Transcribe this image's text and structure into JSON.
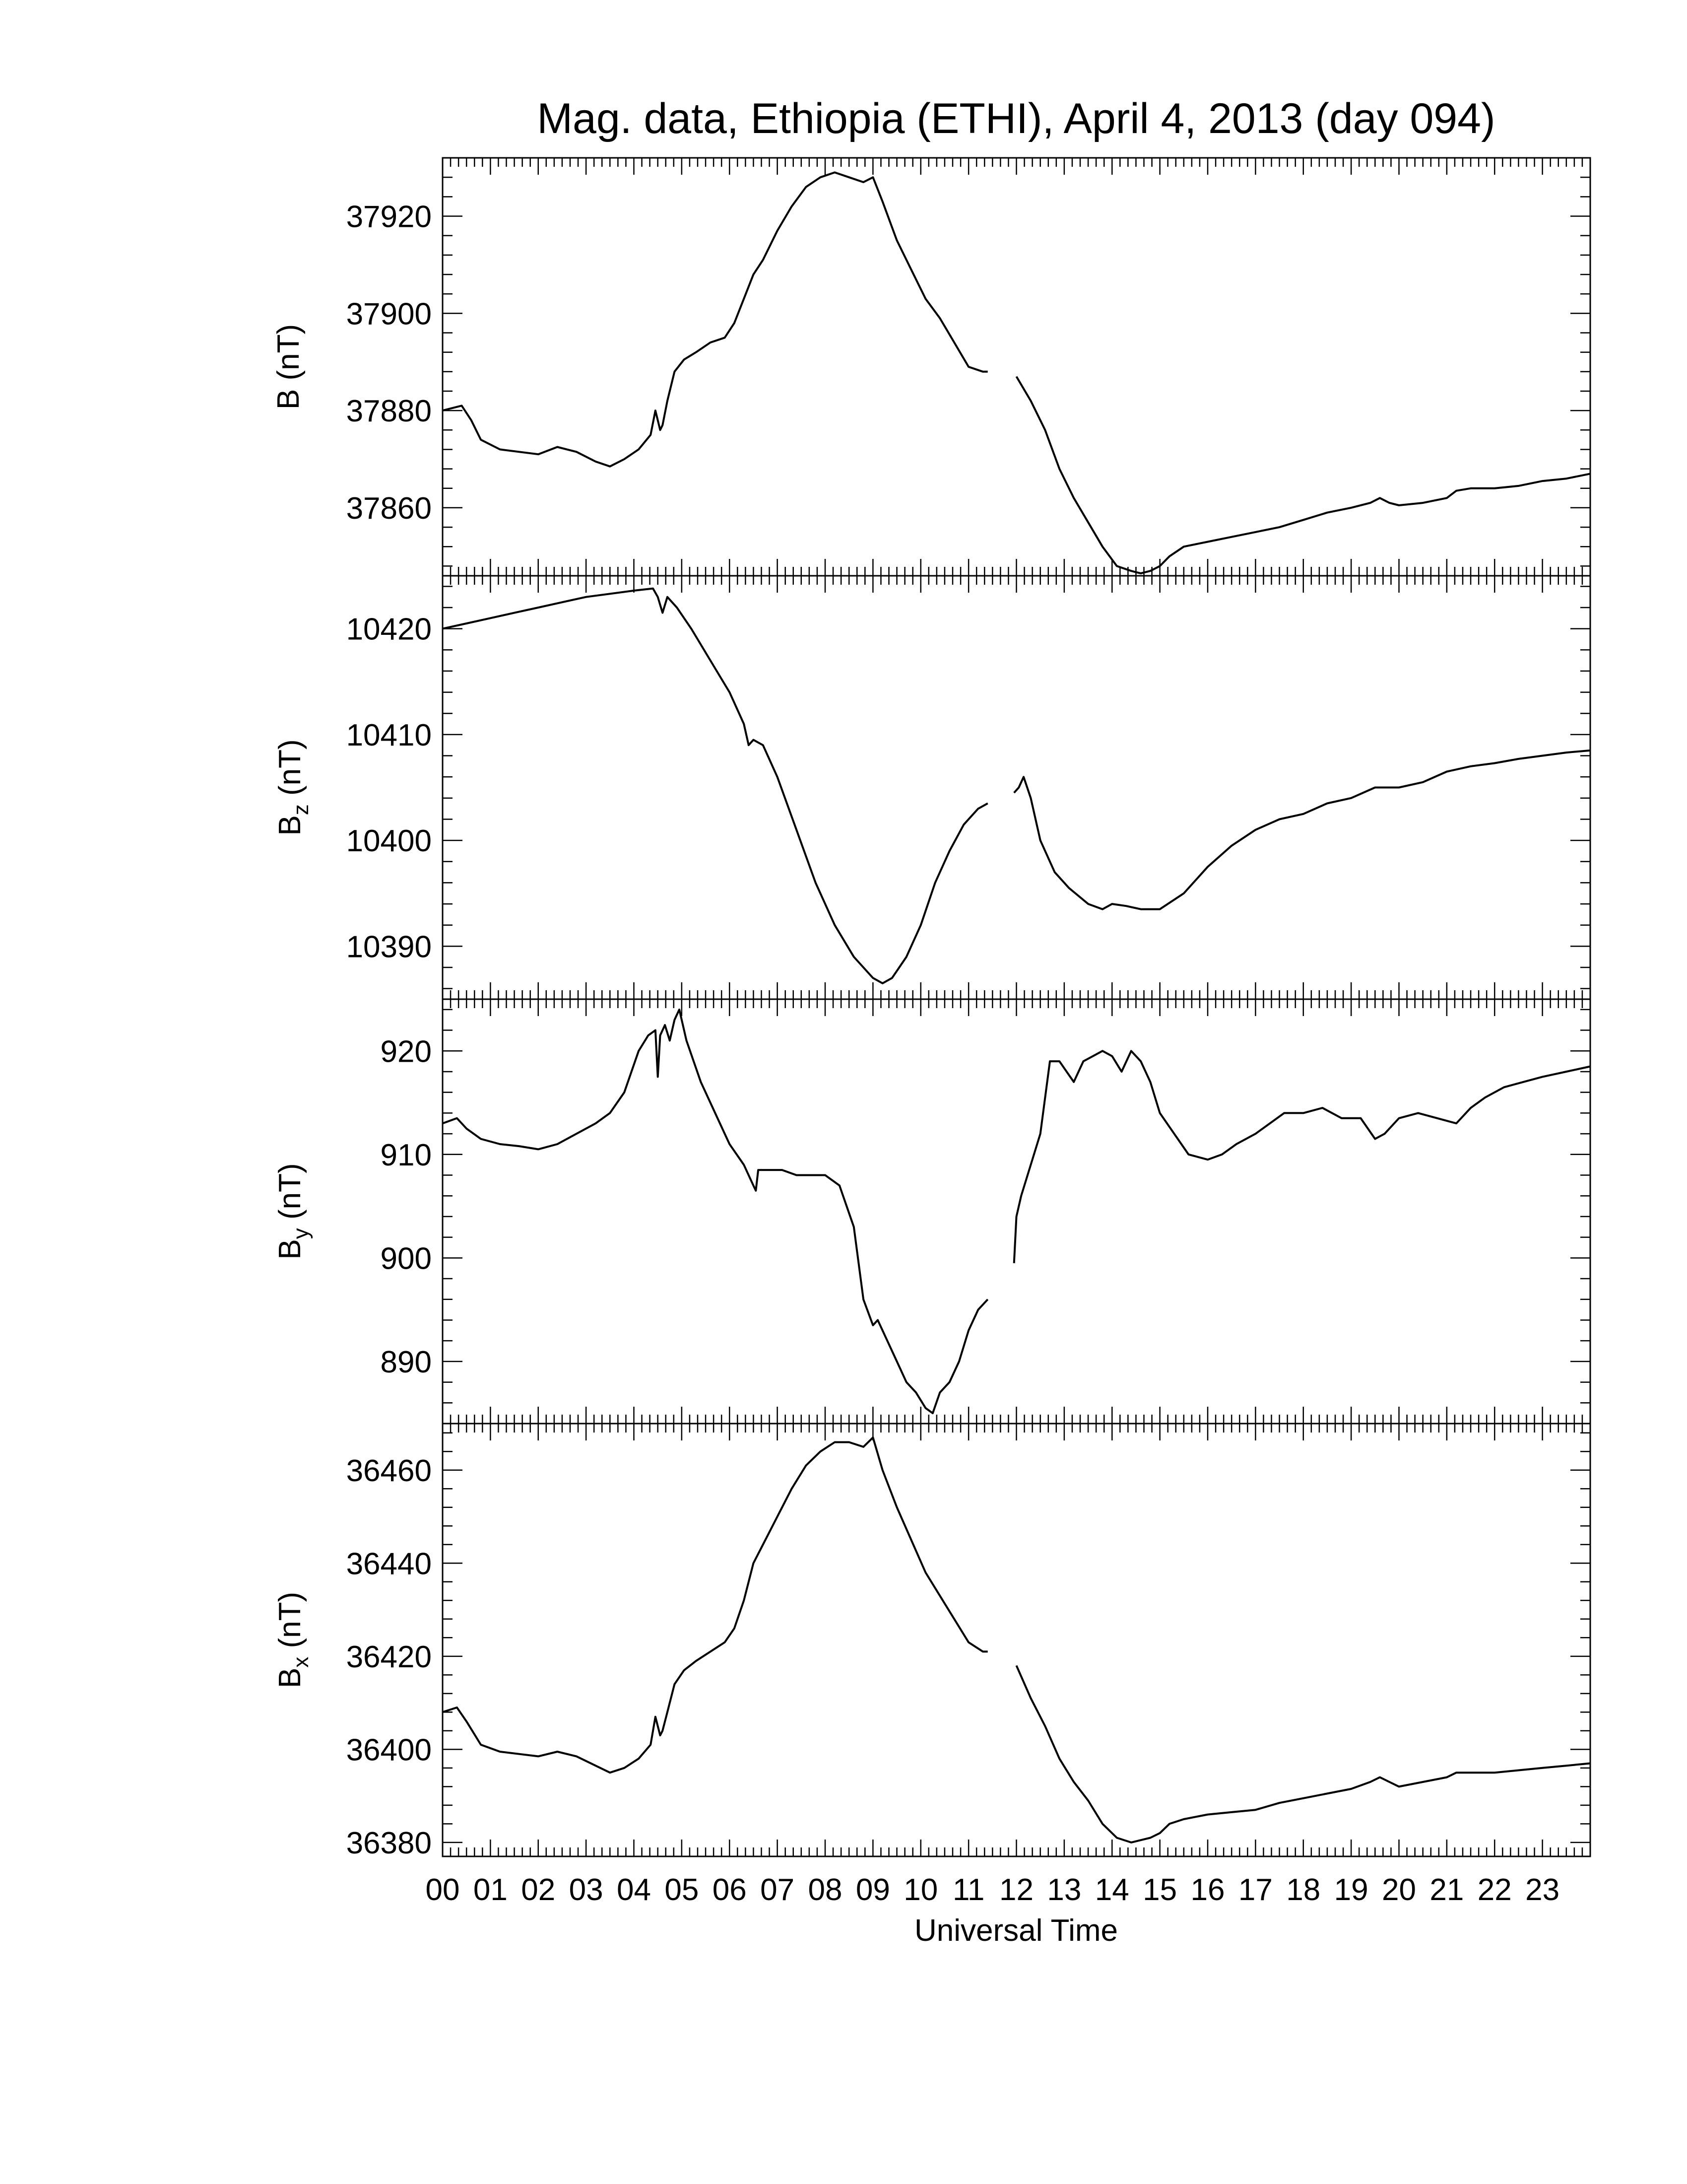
{
  "figure": {
    "title": "Mag. data, Ethiopia (ETHI), April 4, 2013 (day 094)",
    "xlabel": "Universal Time",
    "line_color": "#000000"
  },
  "chart_data": [
    {
      "type": "line",
      "panel": "B",
      "ylabel": "B (nT)",
      "ylabel_base": "B",
      "ylabel_sub": "",
      "ylabel_unit": "(nT)",
      "xlim": [
        0,
        24
      ],
      "ylim": [
        37846,
        37932
      ],
      "yticks": [
        37860,
        37880,
        37900,
        37920
      ],
      "xticks": [
        "00",
        "01",
        "02",
        "03",
        "04",
        "05",
        "06",
        "07",
        "08",
        "09",
        "10",
        "11",
        "12",
        "13",
        "14",
        "15",
        "16",
        "17",
        "18",
        "19",
        "20",
        "21",
        "22",
        "23"
      ],
      "x": [
        0,
        0.4,
        0.6,
        0.8,
        1.2,
        1.6,
        2.0,
        2.4,
        2.8,
        3.2,
        3.5,
        3.8,
        4.1,
        4.35,
        4.45,
        4.55,
        4.6,
        4.7,
        4.85,
        5.05,
        5.3,
        5.6,
        5.9,
        6.1,
        6.3,
        6.5,
        6.7,
        7.0,
        7.3,
        7.6,
        7.9,
        8.2,
        8.5,
        8.8,
        9.0,
        9.2,
        9.5,
        9.8,
        10.1,
        10.4,
        10.7,
        11.0,
        11.3,
        11.4,
        null,
        12.0,
        12.3,
        12.6,
        12.9,
        13.2,
        13.5,
        13.8,
        14.1,
        14.4,
        14.6,
        14.8,
        15.0,
        15.2,
        15.5,
        16.0,
        16.5,
        17.0,
        17.5,
        18.0,
        18.5,
        19.0,
        19.4,
        19.6,
        19.8,
        20.0,
        20.5,
        21.0,
        21.2,
        21.5,
        22.0,
        22.5,
        23.0,
        23.5,
        24.0
      ],
      "y": [
        37880,
        37881,
        37878,
        37874,
        37872,
        37871.5,
        37871,
        37872.5,
        37871.5,
        37869.5,
        37868.5,
        37870,
        37872,
        37875,
        37880,
        37876,
        37877,
        37882,
        37888,
        37890.5,
        37892,
        37894,
        37895,
        37898,
        37903,
        37908,
        37911,
        37917,
        37922,
        37926,
        37928,
        37929,
        37928,
        37927,
        37928,
        37923,
        37915,
        37909,
        37903,
        37899,
        37894,
        37889,
        37888,
        37888,
        null,
        37887,
        37882,
        37876,
        37868,
        37862,
        37857,
        37852,
        37848,
        37847,
        37846.5,
        37847,
        37848,
        37850,
        37852,
        37853,
        37854,
        37855,
        37856,
        37857.5,
        37859,
        37860,
        37861,
        37862,
        37861,
        37860.5,
        37861,
        37862,
        37863.5,
        37864,
        37864,
        37864.5,
        37865.5,
        37866,
        37867
      ]
    },
    {
      "type": "line",
      "panel": "Bz",
      "ylabel": "Bz (nT)",
      "ylabel_base": "B",
      "ylabel_sub": "z",
      "ylabel_unit": "(nT)",
      "xlim": [
        0,
        24
      ],
      "ylim": [
        10385,
        10425
      ],
      "yticks": [
        10390,
        10400,
        10410,
        10420
      ],
      "xticks": [
        "00",
        "01",
        "02",
        "03",
        "04",
        "05",
        "06",
        "07",
        "08",
        "09",
        "10",
        "11",
        "12",
        "13",
        "14",
        "15",
        "16",
        "17",
        "18",
        "19",
        "20",
        "21",
        "22",
        "23"
      ],
      "x": [
        0,
        0.5,
        1.0,
        1.5,
        2.0,
        2.5,
        3.0,
        3.5,
        4.0,
        4.4,
        4.5,
        4.6,
        4.7,
        4.9,
        5.2,
        5.6,
        6.0,
        6.3,
        6.4,
        6.5,
        6.7,
        7.0,
        7.4,
        7.8,
        8.2,
        8.6,
        9.0,
        9.2,
        9.4,
        9.7,
        10.0,
        10.3,
        10.6,
        10.9,
        11.2,
        11.4,
        null,
        11.95,
        12.05,
        12.15,
        12.3,
        12.5,
        12.8,
        13.1,
        13.5,
        13.8,
        14.0,
        14.3,
        14.6,
        15.0,
        15.5,
        16.0,
        16.5,
        17.0,
        17.5,
        18.0,
        18.5,
        19.0,
        19.5,
        20.0,
        20.5,
        21.0,
        21.5,
        22.0,
        22.5,
        23.0,
        23.5,
        24.0
      ],
      "y": [
        10420,
        10420.5,
        10421,
        10421.5,
        10422,
        10422.5,
        10423,
        10423.3,
        10423.6,
        10423.8,
        10423,
        10421.5,
        10423,
        10422,
        10420,
        10417,
        10414,
        10411,
        10409,
        10409.5,
        10409,
        10406,
        10401,
        10396,
        10392,
        10389,
        10387,
        10386.5,
        10387,
        10389,
        10392,
        10396,
        10399,
        10401.5,
        10403,
        10403.5,
        null,
        10404.5,
        10405,
        10406,
        10404,
        10400,
        10397,
        10395.5,
        10394,
        10393.5,
        10394,
        10393.8,
        10393.5,
        10393.5,
        10395,
        10397.5,
        10399.5,
        10401,
        10402,
        10402.5,
        10403.5,
        10404,
        10405,
        10405,
        10405.5,
        10406.5,
        10407,
        10407.3,
        10407.7,
        10408,
        10408.3,
        10408.5
      ]
    },
    {
      "type": "line",
      "panel": "By",
      "ylabel": "By (nT)",
      "ylabel_base": "B",
      "ylabel_sub": "y",
      "ylabel_unit": "(nT)",
      "xlim": [
        0,
        24
      ],
      "ylim": [
        884,
        925
      ],
      "yticks": [
        890,
        900,
        910,
        920
      ],
      "xticks": [
        "00",
        "01",
        "02",
        "03",
        "04",
        "05",
        "06",
        "07",
        "08",
        "09",
        "10",
        "11",
        "12",
        "13",
        "14",
        "15",
        "16",
        "17",
        "18",
        "19",
        "20",
        "21",
        "22",
        "23"
      ],
      "x": [
        0,
        0.3,
        0.5,
        0.8,
        1.2,
        1.6,
        2.0,
        2.4,
        2.8,
        3.2,
        3.5,
        3.8,
        4.1,
        4.3,
        4.45,
        4.5,
        4.55,
        4.65,
        4.75,
        4.85,
        4.95,
        5.1,
        5.4,
        5.7,
        6.0,
        6.3,
        6.5,
        6.55,
        6.6,
        6.8,
        7.1,
        7.4,
        7.7,
        8.0,
        8.3,
        8.6,
        8.8,
        9.0,
        9.1,
        9.3,
        9.5,
        9.7,
        9.9,
        10.1,
        10.25,
        10.4,
        10.6,
        10.8,
        11.0,
        11.2,
        11.4,
        null,
        11.95,
        12.0,
        12.1,
        12.3,
        12.5,
        12.7,
        12.9,
        13.2,
        13.4,
        13.6,
        13.8,
        14.0,
        14.2,
        14.4,
        14.6,
        14.8,
        15.0,
        15.3,
        15.6,
        16.0,
        16.3,
        16.6,
        17.0,
        17.3,
        17.6,
        18.0,
        18.4,
        18.8,
        19.2,
        19.5,
        19.7,
        20.0,
        20.4,
        20.8,
        21.2,
        21.5,
        21.8,
        22.2,
        22.6,
        23.0,
        23.5,
        24.0
      ],
      "y": [
        913,
        913.5,
        912.5,
        911.5,
        911,
        910.8,
        910.5,
        911,
        912,
        913,
        914,
        916,
        920,
        921.5,
        922,
        917.5,
        921.5,
        922.5,
        921,
        923,
        924,
        921,
        917,
        914,
        911,
        909,
        907,
        906.5,
        908.5,
        908.5,
        908.5,
        908,
        908,
        908,
        907,
        903,
        896,
        893.5,
        894,
        892,
        890,
        888,
        887,
        885.5,
        885,
        887,
        888,
        890,
        893,
        895,
        896,
        null,
        899.5,
        904,
        906,
        909,
        912,
        919,
        919,
        917,
        919,
        919.5,
        920,
        919.5,
        918,
        920,
        919,
        917,
        914,
        912,
        910,
        909.5,
        910,
        911,
        912,
        913,
        914,
        914,
        914.5,
        913.5,
        913.5,
        911.5,
        912,
        913.5,
        914,
        913.5,
        913,
        914.5,
        915.5,
        916.5,
        917,
        917.5,
        918,
        918.5
      ]
    },
    {
      "type": "line",
      "panel": "Bx",
      "ylabel": "Bx (nT)",
      "ylabel_base": "B",
      "ylabel_sub": "x",
      "ylabel_unit": "(nT)",
      "xlim": [
        0,
        24
      ],
      "ylim": [
        36377,
        36470
      ],
      "yticks": [
        36380,
        36400,
        36420,
        36440,
        36460
      ],
      "xticks": [
        "00",
        "01",
        "02",
        "03",
        "04",
        "05",
        "06",
        "07",
        "08",
        "09",
        "10",
        "11",
        "12",
        "13",
        "14",
        "15",
        "16",
        "17",
        "18",
        "19",
        "20",
        "21",
        "22",
        "23"
      ],
      "x": [
        0,
        0.3,
        0.5,
        0.8,
        1.2,
        1.6,
        2.0,
        2.4,
        2.8,
        3.2,
        3.5,
        3.8,
        4.1,
        4.35,
        4.45,
        4.55,
        4.6,
        4.7,
        4.85,
        5.05,
        5.3,
        5.6,
        5.9,
        6.1,
        6.3,
        6.5,
        6.7,
        7.0,
        7.3,
        7.6,
        7.9,
        8.2,
        8.5,
        8.8,
        9.0,
        9.2,
        9.5,
        9.8,
        10.1,
        10.4,
        10.7,
        11.0,
        11.3,
        11.4,
        null,
        12.0,
        12.3,
        12.6,
        12.9,
        13.2,
        13.5,
        13.8,
        14.1,
        14.4,
        14.6,
        14.8,
        15.0,
        15.2,
        15.5,
        16.0,
        16.5,
        17.0,
        17.5,
        18.0,
        18.5,
        19.0,
        19.4,
        19.6,
        19.8,
        20.0,
        20.5,
        21.0,
        21.2,
        21.5,
        22.0,
        22.5,
        23.0,
        23.5,
        24.0
      ],
      "y": [
        36408,
        36409,
        36406,
        36401,
        36399.5,
        36399,
        36398.5,
        36399.5,
        36398.5,
        36396.5,
        36395,
        36396,
        36398,
        36401,
        36407,
        36403,
        36404,
        36408,
        36414,
        36417,
        36419,
        36421,
        36423,
        36426,
        36432,
        36440,
        36444,
        36450,
        36456,
        36461,
        36464,
        36466,
        36466,
        36465,
        36467,
        36460,
        36452,
        36445,
        36438,
        36433,
        36428,
        36423,
        36421,
        36421,
        null,
        36418,
        36411,
        36405,
        36398,
        36393,
        36389,
        36384,
        36381,
        36380,
        36380.5,
        36381,
        36382,
        36384,
        36385,
        36386,
        36386.5,
        36387,
        36388.5,
        36389.5,
        36390.5,
        36391.5,
        36393,
        36394,
        36393,
        36392,
        36393,
        36394,
        36395,
        36395,
        36395,
        36395.5,
        36396,
        36396.5,
        36397
      ]
    }
  ]
}
